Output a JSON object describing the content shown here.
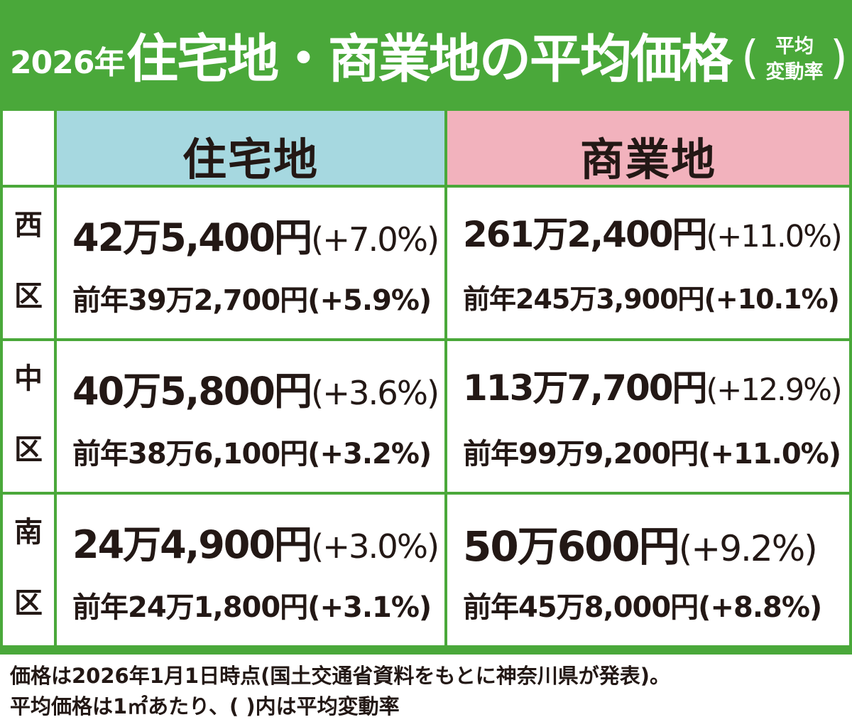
{
  "header": {
    "year": "2026年",
    "title": "住宅地・商業地の平均価格",
    "note_line1": "平均",
    "note_line2": "変動率"
  },
  "columns": {
    "residential": "住宅地",
    "commercial": "商業地"
  },
  "chart_data": {
    "type": "table",
    "columns": [
      "住宅地",
      "商業地"
    ],
    "rows": [
      {
        "ward": "西区",
        "ward_chars": [
          "西",
          "区"
        ],
        "residential": {
          "price": "42万5,400円",
          "change": "(+7.0%)",
          "prev": "前年39万2,700円(+5.9%)"
        },
        "commercial": {
          "price": "261万2,400円",
          "change": "(+11.0%)",
          "prev": "前年245万3,900円(+10.1%)"
        }
      },
      {
        "ward": "中区",
        "ward_chars": [
          "中",
          "区"
        ],
        "residential": {
          "price": "40万5,800円",
          "change": "(+3.6%)",
          "prev": "前年38万6,100円(+3.2%)"
        },
        "commercial": {
          "price": "113万7,700円",
          "change": "(+12.9%)",
          "prev": "前年99万9,200円(+11.0%)"
        }
      },
      {
        "ward": "南区",
        "ward_chars": [
          "南",
          "区"
        ],
        "residential": {
          "price": "24万4,900円",
          "change": "(+3.0%)",
          "prev": "前年24万1,800円(+3.1%)"
        },
        "commercial": {
          "price": "50万600円",
          "change": "(+9.2%)",
          "prev": "前年45万8,000円(+8.8%)"
        }
      }
    ]
  },
  "footnote": {
    "line1": "価格は2026年1月1日時点(国土交通省資料をもとに神奈川県が発表)。",
    "line2": "平均価格は1㎡あたり、( )内は平均変動率"
  },
  "colors": {
    "frame_green": "#4aa83a",
    "residential_header": "#a6d8e0",
    "commercial_header": "#f2b2bd",
    "text": "#231815"
  }
}
